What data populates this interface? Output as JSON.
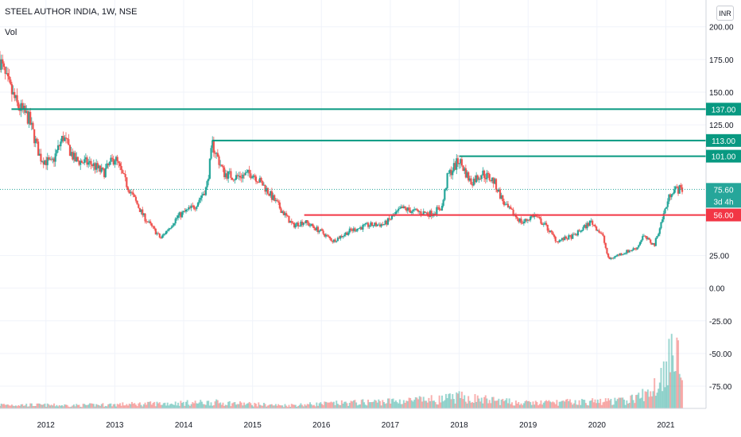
{
  "header": {
    "title": "STEEL AUTHOR INDIA, 1W, NSE",
    "volume_label": "Vol",
    "currency_button": "INR"
  },
  "colors": {
    "up": "#26a69a",
    "down": "#ef5350",
    "support_line": "#f23645",
    "resistance_line": "#089981",
    "grid": "#f0f3fa",
    "axis_text": "#131722"
  },
  "chart_data": {
    "type": "candlestick",
    "title": "STEEL AUTHOR INDIA, 1W, NSE",
    "interval": "1W",
    "exchange": "NSE",
    "y_axis": {
      "position": "right",
      "ylim": [
        -92,
        212
      ],
      "ticks": [
        {
          "value": 200,
          "label": "200.00"
        },
        {
          "value": 175,
          "label": "175.00"
        },
        {
          "value": 150,
          "label": "150.00"
        },
        {
          "value": 125,
          "label": "125.00"
        },
        {
          "value": 25,
          "label": "25.00"
        },
        {
          "value": 0,
          "label": "0.00"
        },
        {
          "value": -25,
          "label": "-25.00"
        },
        {
          "value": -50,
          "label": "-50.00"
        },
        {
          "value": -75,
          "label": "-75.00"
        }
      ]
    },
    "x_axis": {
      "xlim": [
        "2011-05",
        "2021-08"
      ],
      "ticks": [
        {
          "label": "2012",
          "value": "2012-01"
        },
        {
          "label": "2013",
          "value": "2013-01"
        },
        {
          "label": "2014",
          "value": "2014-01"
        },
        {
          "label": "2015",
          "value": "2015-01"
        },
        {
          "label": "2016",
          "value": "2016-01"
        },
        {
          "label": "2017",
          "value": "2017-01"
        },
        {
          "label": "2018",
          "value": "2018-01"
        },
        {
          "label": "2019",
          "value": "2019-01"
        },
        {
          "label": "2020",
          "value": "2020-01"
        },
        {
          "label": "2021",
          "value": "2021-01"
        }
      ]
    },
    "grid": true,
    "horizontal_levels": [
      {
        "price": 137,
        "label": "137.00",
        "start": "2011-07",
        "kind": "resistance"
      },
      {
        "price": 113,
        "label": "113.00",
        "start": "2014-06",
        "kind": "resistance"
      },
      {
        "price": 101,
        "label": "101.00",
        "start": "2018-01",
        "kind": "resistance"
      },
      {
        "price": 56,
        "label": "56.00",
        "start": "2015-10",
        "kind": "support"
      }
    ],
    "last_price": {
      "price": 75.6,
      "label": "75.60",
      "countdown": "3d 4h"
    },
    "price_path": [
      [
        "2011-05",
        175
      ],
      [
        "2011-06",
        160
      ],
      [
        "2011-08",
        140
      ],
      [
        "2011-10",
        130
      ],
      [
        "2011-12",
        100
      ],
      [
        "2012-02",
        95
      ],
      [
        "2012-04",
        116
      ],
      [
        "2012-06",
        98
      ],
      [
        "2012-09",
        95
      ],
      [
        "2012-11",
        88
      ],
      [
        "2013-01",
        100
      ],
      [
        "2013-03",
        80
      ],
      [
        "2013-06",
        55
      ],
      [
        "2013-09",
        38
      ],
      [
        "2013-12",
        55
      ],
      [
        "2014-03",
        63
      ],
      [
        "2014-05",
        77
      ],
      [
        "2014-06",
        110
      ],
      [
        "2014-08",
        88
      ],
      [
        "2014-10",
        85
      ],
      [
        "2015-01",
        88
      ],
      [
        "2015-03",
        78
      ],
      [
        "2015-05",
        66
      ],
      [
        "2015-08",
        48
      ],
      [
        "2015-10",
        51
      ],
      [
        "2016-01",
        43
      ],
      [
        "2016-03",
        36
      ],
      [
        "2016-06",
        44
      ],
      [
        "2016-09",
        48
      ],
      [
        "2016-12",
        49
      ],
      [
        "2017-03",
        61
      ],
      [
        "2017-05",
        59
      ],
      [
        "2017-08",
        57
      ],
      [
        "2017-10",
        62
      ],
      [
        "2017-11",
        86
      ],
      [
        "2018-01",
        98
      ],
      [
        "2018-03",
        81
      ],
      [
        "2018-05",
        88
      ],
      [
        "2018-07",
        82
      ],
      [
        "2018-09",
        63
      ],
      [
        "2018-12",
        50
      ],
      [
        "2019-02",
        56
      ],
      [
        "2019-04",
        48
      ],
      [
        "2019-06",
        36
      ],
      [
        "2019-09",
        40
      ],
      [
        "2019-12",
        51
      ],
      [
        "2020-02",
        40
      ],
      [
        "2020-03",
        22
      ],
      [
        "2020-05",
        26
      ],
      [
        "2020-08",
        31
      ],
      [
        "2020-09",
        40
      ],
      [
        "2020-11",
        33
      ],
      [
        "2021-01",
        62
      ],
      [
        "2021-02",
        75
      ],
      [
        "2021-04",
        76
      ]
    ],
    "volume": {
      "unit": "relative",
      "path": [
        [
          "2011-05",
          0.05
        ],
        [
          "2012-06",
          0.04
        ],
        [
          "2014-06",
          0.08
        ],
        [
          "2015-06",
          0.04
        ],
        [
          "2017-10",
          0.12
        ],
        [
          "2018-01",
          0.15
        ],
        [
          "2018-12",
          0.07
        ],
        [
          "2019-12",
          0.09
        ],
        [
          "2020-06",
          0.1
        ],
        [
          "2020-10",
          0.2
        ],
        [
          "2021-01",
          0.5
        ],
        [
          "2021-02",
          1.0
        ],
        [
          "2021-04",
          0.3
        ]
      ]
    }
  }
}
